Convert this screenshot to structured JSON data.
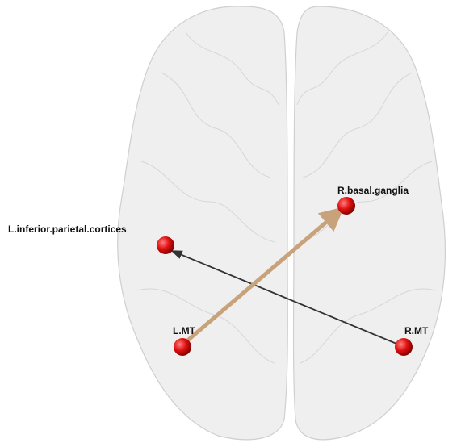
{
  "nodes": [
    {
      "label": "L.inferior.parietal.cortices"
    },
    {
      "label": "R.basal.ganglia"
    },
    {
      "label": "L.MT"
    },
    {
      "label": "R.MT"
    }
  ]
}
